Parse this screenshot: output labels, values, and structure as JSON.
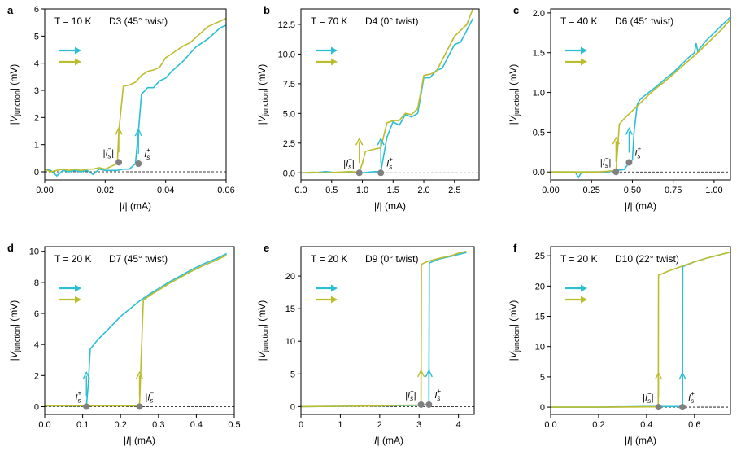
{
  "colors": {
    "cyan": "#2bbfd4",
    "olive": "#bcbc2f",
    "marker": "#808080",
    "baseline": "#000000"
  },
  "chart_data": [
    {
      "type": "line",
      "letter": "a",
      "temperature": "T = 10 K",
      "device": "D3 (45° twist)",
      "xlabel": "|I| (mA)",
      "ylabel": "|V_junction| (mV)",
      "xlim": [
        0,
        0.06
      ],
      "ylim": [
        -0.3,
        6
      ],
      "xticks": [
        0.0,
        0.02,
        0.04,
        0.06
      ],
      "xtick_labels": [
        "0.00",
        "0.02",
        "0.04",
        "0.06"
      ],
      "yticks": [
        0,
        1,
        2,
        3,
        4,
        5,
        6
      ],
      "ytick_labels": [
        "0",
        "1",
        "2",
        "3",
        "4",
        "5",
        "6"
      ],
      "annotations": [
        {
          "label": "|I_s^-|",
          "x": 0.0245,
          "y": 0.35,
          "color": "olive",
          "side": "left"
        },
        {
          "label": "I_s^+",
          "x": 0.031,
          "y": 0.3,
          "color": "cyan",
          "side": "right"
        }
      ],
      "series": [
        {
          "name": "cyan",
          "x": [
            0,
            0.002,
            0.004,
            0.006,
            0.008,
            0.01,
            0.012,
            0.014,
            0.016,
            0.018,
            0.02,
            0.022,
            0.024,
            0.026,
            0.028,
            0.03,
            0.031,
            0.032,
            0.034,
            0.036,
            0.038,
            0.04,
            0.042,
            0.044,
            0.046,
            0.048,
            0.05,
            0.052,
            0.054,
            0.056,
            0.058,
            0.06
          ],
          "y": [
            0.1,
            0.05,
            -0.15,
            0.05,
            0.0,
            0.05,
            0.0,
            0.05,
            -0.1,
            0.1,
            0.05,
            0.05,
            0.05,
            0.1,
            0.1,
            0.3,
            1.5,
            2.85,
            3.1,
            3.1,
            3.35,
            3.45,
            3.7,
            3.9,
            4.1,
            4.35,
            4.6,
            4.75,
            4.9,
            5.1,
            5.3,
            5.4
          ]
        },
        {
          "name": "olive",
          "x": [
            0,
            0.002,
            0.004,
            0.006,
            0.008,
            0.01,
            0.012,
            0.014,
            0.016,
            0.018,
            0.02,
            0.022,
            0.024,
            0.0245,
            0.026,
            0.028,
            0.03,
            0.032,
            0.034,
            0.036,
            0.038,
            0.04,
            0.042,
            0.044,
            0.046,
            0.048,
            0.05,
            0.052,
            0.054,
            0.056,
            0.058,
            0.06
          ],
          "y": [
            0.1,
            0.0,
            0.05,
            0.1,
            0.05,
            0.1,
            0.05,
            0.1,
            0.1,
            0.15,
            0.1,
            0.2,
            0.3,
            1.5,
            3.15,
            3.2,
            3.3,
            3.55,
            3.7,
            3.75,
            3.85,
            4.2,
            4.35,
            4.5,
            4.65,
            4.75,
            4.95,
            5.15,
            5.35,
            5.45,
            5.55,
            5.65
          ]
        }
      ]
    },
    {
      "type": "line",
      "letter": "b",
      "temperature": "T = 70 K",
      "device": "D4 (0° twist)",
      "xlabel": "|I| (mA)",
      "ylabel": "|V_junction| (mV)",
      "xlim": [
        0,
        2.9
      ],
      "ylim": [
        -0.6,
        13.8
      ],
      "xticks": [
        0.0,
        0.5,
        1.0,
        1.5,
        2.0,
        2.5
      ],
      "xtick_labels": [
        "0.0",
        "0.5",
        "1.0",
        "1.5",
        "2.0",
        "2.5"
      ],
      "yticks": [
        0.0,
        2.5,
        5.0,
        7.5,
        10.0,
        12.5
      ],
      "ytick_labels": [
        "0.0",
        "2.5",
        "5.0",
        "7.5",
        "10.0",
        "12.5"
      ],
      "annotations": [
        {
          "label": "|I_s^-|",
          "x": 0.95,
          "y": 0.0,
          "color": "olive",
          "side": "left"
        },
        {
          "label": "I_s^+",
          "x": 1.3,
          "y": 0.0,
          "color": "cyan",
          "side": "right"
        }
      ],
      "series": [
        {
          "name": "cyan",
          "x": [
            0,
            0.2,
            0.4,
            0.6,
            0.8,
            1.0,
            1.2,
            1.3,
            1.35,
            1.4,
            1.5,
            1.6,
            1.7,
            1.8,
            1.9,
            1.95,
            2.0,
            2.1,
            2.2,
            2.3,
            2.4,
            2.5,
            2.6,
            2.7,
            2.8
          ],
          "y": [
            0,
            0.0,
            0.1,
            0.0,
            0.05,
            0.0,
            0.1,
            0.1,
            1.5,
            3.0,
            4.3,
            4.0,
            4.9,
            4.7,
            5.0,
            6.5,
            8.0,
            8.0,
            8.6,
            8.8,
            9.8,
            10.8,
            11.0,
            12.0,
            13.0
          ]
        },
        {
          "name": "olive",
          "x": [
            0,
            0.2,
            0.4,
            0.6,
            0.8,
            0.95,
            1.0,
            1.05,
            1.2,
            1.3,
            1.4,
            1.5,
            1.6,
            1.7,
            1.8,
            1.9,
            1.95,
            2.0,
            2.1,
            2.2,
            2.3,
            2.4,
            2.5,
            2.6,
            2.7,
            2.8
          ],
          "y": [
            0,
            0.05,
            0.0,
            0.05,
            0.1,
            0.05,
            0.8,
            1.8,
            2.0,
            2.1,
            4.2,
            4.4,
            4.4,
            5.0,
            4.9,
            5.4,
            6.8,
            8.2,
            8.3,
            8.5,
            9.5,
            10.5,
            11.5,
            12.0,
            12.5,
            13.8
          ]
        }
      ]
    },
    {
      "type": "line",
      "letter": "c",
      "temperature": "T = 40 K",
      "device": "D6 (45° twist)",
      "xlabel": "|I| (mA)",
      "ylabel": "|V_junction| (mV)",
      "xlim": [
        0,
        1.1
      ],
      "ylim": [
        -0.1,
        2.05
      ],
      "xticks": [
        0.0,
        0.25,
        0.5,
        0.75,
        1.0
      ],
      "xtick_labels": [
        "0.00",
        "0.25",
        "0.50",
        "0.75",
        "1.00"
      ],
      "yticks": [
        0.0,
        0.5,
        1.0,
        1.5,
        2.0
      ],
      "ytick_labels": [
        "0.0",
        "0.5",
        "1.0",
        "1.5",
        "2.0"
      ],
      "annotations": [
        {
          "label": "|I_s^-|",
          "x": 0.4,
          "y": 0.0,
          "color": "olive",
          "side": "left"
        },
        {
          "label": "I_s^+",
          "x": 0.48,
          "y": 0.12,
          "color": "cyan",
          "side": "right"
        }
      ],
      "series": [
        {
          "name": "cyan",
          "x": [
            0,
            0.1,
            0.15,
            0.17,
            0.19,
            0.25,
            0.3,
            0.35,
            0.4,
            0.45,
            0.48,
            0.5,
            0.51,
            0.53,
            0.55,
            0.6,
            0.65,
            0.7,
            0.75,
            0.8,
            0.85,
            0.88,
            0.89,
            0.9,
            0.95,
            1.0,
            1.05,
            1.1
          ],
          "y": [
            0.0,
            0.0,
            0.0,
            -0.07,
            0.0,
            0.0,
            0.0,
            0.0,
            0.02,
            0.03,
            0.12,
            0.15,
            0.5,
            0.85,
            0.92,
            1.0,
            1.08,
            1.17,
            1.25,
            1.35,
            1.45,
            1.5,
            1.62,
            1.52,
            1.65,
            1.75,
            1.85,
            1.95
          ]
        },
        {
          "name": "olive",
          "x": [
            0,
            0.1,
            0.2,
            0.3,
            0.35,
            0.4,
            0.41,
            0.42,
            0.45,
            0.5,
            0.55,
            0.6,
            0.65,
            0.7,
            0.75,
            0.8,
            0.85,
            0.9,
            0.95,
            1.0,
            1.05,
            1.1
          ],
          "y": [
            0.0,
            0.0,
            0.0,
            0.0,
            0.01,
            0.02,
            0.3,
            0.6,
            0.67,
            0.77,
            0.87,
            0.97,
            1.06,
            1.14,
            1.23,
            1.32,
            1.41,
            1.5,
            1.6,
            1.7,
            1.8,
            1.92
          ]
        }
      ]
    },
    {
      "type": "line",
      "letter": "d",
      "temperature": "T = 20 K",
      "device": "D7 (45° twist)",
      "xlabel": "|I| (mA)",
      "ylabel": "|V_junction| (mV)",
      "xlim": [
        0,
        0.5
      ],
      "ylim": [
        -0.5,
        10.3
      ],
      "xticks": [
        0.0,
        0.1,
        0.2,
        0.3,
        0.4,
        0.5
      ],
      "xtick_labels": [
        "0.0",
        "0.1",
        "0.2",
        "0.3",
        "0.4",
        "0.5"
      ],
      "yticks": [
        0,
        2,
        4,
        6,
        8,
        10
      ],
      "ytick_labels": [
        "0",
        "2",
        "4",
        "6",
        "8",
        "10"
      ],
      "annotations": [
        {
          "label": "I_s^+",
          "x": 0.11,
          "y": 0.0,
          "color": "cyan",
          "side": "left"
        },
        {
          "label": "|I_s^-|",
          "x": 0.25,
          "y": 0.0,
          "color": "olive",
          "side": "right"
        }
      ],
      "series": [
        {
          "name": "cyan",
          "x": [
            0,
            0.05,
            0.1,
            0.11,
            0.115,
            0.12,
            0.14,
            0.16,
            0.18,
            0.2,
            0.22,
            0.25,
            0.28,
            0.3,
            0.33,
            0.36,
            0.39,
            0.42,
            0.45,
            0.48
          ],
          "y": [
            0.05,
            0.05,
            0.05,
            0.05,
            1.5,
            3.7,
            4.3,
            4.8,
            5.3,
            5.8,
            6.2,
            6.8,
            7.3,
            7.6,
            8.05,
            8.45,
            8.85,
            9.2,
            9.5,
            9.85
          ]
        },
        {
          "name": "olive",
          "x": [
            0,
            0.05,
            0.1,
            0.15,
            0.2,
            0.24,
            0.25,
            0.255,
            0.26,
            0.28,
            0.3,
            0.33,
            0.36,
            0.39,
            0.42,
            0.45,
            0.48
          ],
          "y": [
            0.05,
            0.05,
            0.05,
            0.05,
            0.05,
            0.05,
            0.05,
            3.5,
            6.85,
            7.2,
            7.5,
            7.95,
            8.35,
            8.75,
            9.1,
            9.4,
            9.75
          ]
        }
      ]
    },
    {
      "type": "line",
      "letter": "e",
      "temperature": "T = 20 K",
      "device": "D9 (0° twist)",
      "xlabel": "|I| (mA)",
      "ylabel": "|V_junction| (mV)",
      "xlim": [
        0,
        4.4
      ],
      "ylim": [
        -1.2,
        24.5
      ],
      "xticks": [
        0,
        1,
        2,
        3,
        4
      ],
      "xtick_labels": [
        "0",
        "1",
        "2",
        "3",
        "4"
      ],
      "yticks": [
        0,
        5,
        10,
        15,
        20
      ],
      "ytick_labels": [
        "0",
        "5",
        "10",
        "15",
        "20"
      ],
      "annotations": [
        {
          "label": "|I_s^-|",
          "x": 3.05,
          "y": 0.3,
          "color": "olive",
          "side": "left"
        },
        {
          "label": "I_s^+",
          "x": 3.25,
          "y": 0.3,
          "color": "cyan",
          "side": "right"
        }
      ],
      "series": [
        {
          "name": "cyan",
          "x": [
            0,
            1,
            2,
            2.5,
            3.0,
            3.2,
            3.25,
            3.26,
            3.5,
            3.8,
            4.0,
            4.2
          ],
          "y": [
            0,
            0.05,
            0.1,
            0.15,
            0.2,
            0.3,
            0.3,
            22.0,
            22.6,
            23.0,
            23.3,
            23.6
          ]
        },
        {
          "name": "olive",
          "x": [
            0,
            1,
            2,
            2.5,
            3.0,
            3.05,
            3.06,
            3.2,
            3.5,
            3.8,
            4.0,
            4.2
          ],
          "y": [
            0,
            0.05,
            0.1,
            0.2,
            0.25,
            0.3,
            21.8,
            22.2,
            22.7,
            23.1,
            23.5,
            23.8
          ]
        }
      ]
    },
    {
      "type": "line",
      "letter": "f",
      "temperature": "T = 20 K",
      "device": "D10 (22° twist)",
      "xlabel": "|I| (mA)",
      "ylabel": "|V_junction| (mV)",
      "xlim": [
        0,
        0.75
      ],
      "ylim": [
        -1.2,
        26.5
      ],
      "xticks": [
        0.0,
        0.2,
        0.4,
        0.6
      ],
      "xtick_labels": [
        "0.0",
        "0.2",
        "0.4",
        "0.6"
      ],
      "yticks": [
        0,
        5,
        10,
        15,
        20,
        25
      ],
      "ytick_labels": [
        "0",
        "5",
        "10",
        "15",
        "20",
        "25"
      ],
      "annotations": [
        {
          "label": "|I_s^-|",
          "x": 0.45,
          "y": 0.0,
          "color": "olive",
          "side": "left"
        },
        {
          "label": "I_s^+",
          "x": 0.55,
          "y": 0.0,
          "color": "cyan",
          "side": "right"
        }
      ],
      "series": [
        {
          "name": "cyan",
          "x": [
            0,
            0.2,
            0.4,
            0.5,
            0.54,
            0.55,
            0.551,
            0.6,
            0.65,
            0.7,
            0.75
          ],
          "y": [
            0,
            0.0,
            0.1,
            0.1,
            0.1,
            0.1,
            23.2,
            24.0,
            24.6,
            25.1,
            25.6
          ]
        },
        {
          "name": "olive",
          "x": [
            0,
            0.2,
            0.4,
            0.449,
            0.45,
            0.5,
            0.55,
            0.6,
            0.65,
            0.7,
            0.75
          ],
          "y": [
            0,
            0.0,
            0.05,
            0.05,
            21.8,
            22.6,
            23.3,
            24.0,
            24.6,
            25.1,
            25.6
          ]
        }
      ]
    }
  ]
}
